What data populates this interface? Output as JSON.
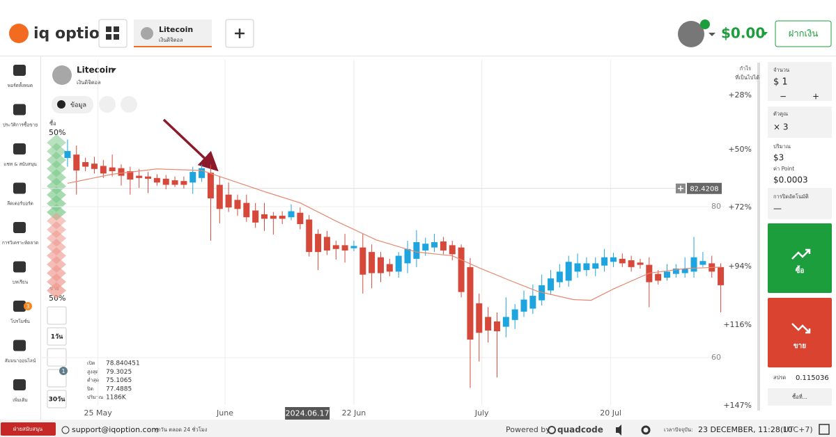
{
  "header": {
    "logo": "iq option",
    "tab_title": "Litecoin",
    "tab_subtitle": "เงินดิจิตอล",
    "balance": "$0.00",
    "deposit": "ฝากเงิน"
  },
  "sidebar": [
    "พอร์ตทั้งหมด",
    "ประวัติการซื้อขาย",
    "แชท & สนับสนุน",
    "ลีดเดอร์บอร์ด",
    "การวิเคราะห์ตลาด",
    "บทเรียน",
    "โปรโมชั่น",
    "สัมมนาออนไลน์",
    "เพิ่มเติม"
  ],
  "promo_badge": "3",
  "asset": {
    "name": "Litecoin",
    "category": "เงินดิจิตอล",
    "info": "ข้อมูล"
  },
  "sentiment": {
    "buy_label": "ซื้อ",
    "buy_pct": "50%",
    "sell_label": "ขาย",
    "sell_pct": "50%"
  },
  "tools": {
    "timeframe": "1วัน",
    "range": "30วัน",
    "indicator_badge": "1"
  },
  "ohlc": {
    "labels": [
      "เปิด",
      "สูงสุด",
      "ต่ำสุด",
      "ปิด",
      "ปริมาณ"
    ],
    "values": [
      "78.840451",
      "79.3025",
      "75.1065",
      "77.4885",
      "1186K"
    ]
  },
  "profit": {
    "title": [
      "กำไร",
      "ที่เป็นไปได้"
    ],
    "labels": [
      "+28%",
      "+50%",
      "+72%",
      "+94%",
      "+116%",
      "+147%"
    ]
  },
  "chart_data": {
    "type": "candlestick",
    "up_color": "#1ea5e0",
    "down_color": "#d6493a",
    "ma_color": "#e8876e",
    "grid": true,
    "open": [
      86.45,
      86.9,
      85.9,
      85.7,
      85.4,
      85.2,
      85.1,
      84.7,
      84.1,
      84.0,
      83.8,
      83.7,
      83.5,
      83.4,
      83.2,
      83.8,
      84.5,
      82.9,
      81.6,
      80.9,
      80.5,
      79.5,
      79.0,
      78.8,
      78.8,
      78.6,
      79.2,
      78.3,
      76.4,
      76.0,
      74.9,
      74.9,
      74.5,
      74.6,
      74.0,
      73.3,
      72.4,
      71.4,
      72.5,
      73.1,
      74.2,
      74.6,
      75.4,
      74.9,
      74.6,
      72.0,
      67.2,
      65.4,
      64.8,
      64.1,
      65.0,
      66.1,
      66.5,
      67.6,
      68.9,
      70.0,
      70.2,
      71.4,
      71.6,
      71.8,
      72.2,
      72.7,
      73.1,
      72.9,
      72.6,
      72.3,
      71.1,
      70.6,
      71.1,
      71.2,
      71.4,
      72.3,
      72.5,
      72.0
    ],
    "high": [
      88.9,
      88.1,
      86.5,
      86.6,
      86.2,
      86.9,
      85.6,
      85.3,
      85.0,
      84.6,
      84.3,
      84.2,
      84.0,
      84.0,
      85.3,
      85.6,
      85.6,
      84.0,
      83.2,
      81.6,
      81.6,
      80.5,
      80.5,
      79.3,
      79.4,
      80.3,
      79.9,
      78.9,
      77.0,
      76.8,
      75.5,
      76.4,
      75.5,
      76.4,
      75.0,
      74.0,
      73.1,
      74.0,
      75.5,
      76.9,
      75.9,
      76.4,
      76.0,
      75.5,
      75.0,
      73.2,
      68.5,
      66.7,
      66.0,
      68.0,
      67.1,
      68.9,
      69.7,
      71.0,
      71.6,
      72.4,
      73.5,
      73.8,
      73.3,
      73.3,
      74.4,
      73.9,
      73.8,
      73.5,
      73.1,
      73.3,
      71.6,
      72.4,
      72.4,
      73.3,
      76.0,
      74.0,
      73.5,
      72.5
    ],
    "low": [
      85.3,
      81.6,
      84.7,
      84.4,
      83.8,
      84.0,
      82.8,
      81.6,
      82.5,
      81.8,
      82.8,
      82.3,
      82.6,
      82.4,
      81.7,
      83.3,
      75.5,
      77.8,
      79.3,
      78.8,
      78.0,
      77.2,
      76.8,
      76.3,
      77.7,
      78.2,
      77.0,
      73.4,
      71.6,
      73.6,
      73.0,
      72.6,
      74.1,
      68.5,
      69.2,
      70.0,
      70.8,
      70.6,
      71.2,
      72.0,
      73.5,
      74.0,
      73.7,
      72.9,
      68.0,
      56.0,
      59.5,
      62.0,
      57.4,
      62.7,
      63.8,
      65.4,
      65.8,
      66.9,
      68.3,
      69.3,
      69.4,
      70.6,
      70.8,
      70.8,
      71.4,
      72.0,
      72.0,
      71.4,
      71.8,
      66.7,
      69.7,
      70.2,
      70.6,
      70.6,
      70.6,
      72.0,
      70.6,
      66.0
    ],
    "close": [
      87.37,
      84.8,
      85.3,
      85.0,
      84.4,
      84.7,
      84.1,
      83.6,
      83.8,
      83.7,
      83.2,
      82.9,
      82.9,
      82.9,
      84.6,
      85.1,
      81.1,
      79.7,
      79.9,
      79.7,
      78.6,
      77.9,
      78.4,
      78.4,
      78.4,
      79.4,
      77.7,
      74.0,
      74.0,
      74.2,
      74.4,
      74.2,
      74.8,
      71.0,
      71.2,
      71.2,
      71.4,
      73.5,
      74.4,
      75.3,
      75.1,
      75.3,
      74.2,
      73.7,
      68.7,
      62.4,
      63.3,
      63.6,
      63.5,
      65.4,
      66.4,
      67.7,
      68.2,
      69.6,
      70.5,
      71.4,
      72.7,
      72.5,
      72.5,
      72.5,
      73.3,
      73.3,
      72.5,
      72.0,
      72.3,
      70.0,
      70.2,
      71.4,
      71.8,
      71.8,
      73.3,
      72.8,
      71.4,
      69.6
    ],
    "ma": {
      "x": [
        0,
        5,
        10,
        15,
        18,
        22,
        26,
        30,
        34.5,
        39,
        43,
        46,
        49.5,
        52.5,
        56.5,
        58.5,
        61,
        65,
        69,
        73
      ],
      "values": [
        83.1,
        84.3,
        85.0,
        84.8,
        83.6,
        82.0,
        80.5,
        78.1,
        75.6,
        74.0,
        73.5,
        71.9,
        70.2,
        68.8,
        67.7,
        67.6,
        69.1,
        71.2,
        71.8,
        72.0
      ]
    },
    "ylim": [
      53,
      99.45
    ],
    "yticks": [
      60,
      80
    ],
    "xlim": [
      -0.5,
      73.5
    ],
    "xticks": [
      {
        "value": 3.4,
        "label": "25 May"
      },
      {
        "value": 17.6,
        "label": "June"
      },
      {
        "value": 32,
        "label": "22 Jun"
      },
      {
        "value": 46.3,
        "label": "July"
      },
      {
        "value": 60.7,
        "label": "20 Jul"
      }
    ],
    "cursor_x": {
      "value": 26.8,
      "label": "2024.06.17"
    },
    "current_price": 82.4208
  },
  "trade_panel": {
    "amount_label": "จำนวน",
    "amount": "$ 1",
    "minus": "−",
    "plus": "+",
    "multiplier_label": "ตัวคูณ",
    "multiplier": "× 3",
    "volume_label": "ปริมาณ",
    "volume": "$3",
    "point_label": "ค่า Point",
    "point": "$0.0003",
    "autoclose_label": "การปิดอัตโนมัติ",
    "autoclose": "—",
    "buy": "ซื้อ",
    "sell": "ขาย",
    "spread_label": "สปรด",
    "spread": "0.115036",
    "buy_at": "ซื้อที่..."
  },
  "footer": {
    "support": "ฝ่ายสนับสนุน",
    "email": "support@iqoption.com",
    "hours": "ทุกวัน ตลอด 24 ชั่วโมง",
    "powered": "Powered by",
    "brand": "quadcode",
    "time_label": "เวลาปัจจุบัน:",
    "time": "23 DECEMBER, 11:28:10",
    "tz": "(UTC+7)"
  }
}
